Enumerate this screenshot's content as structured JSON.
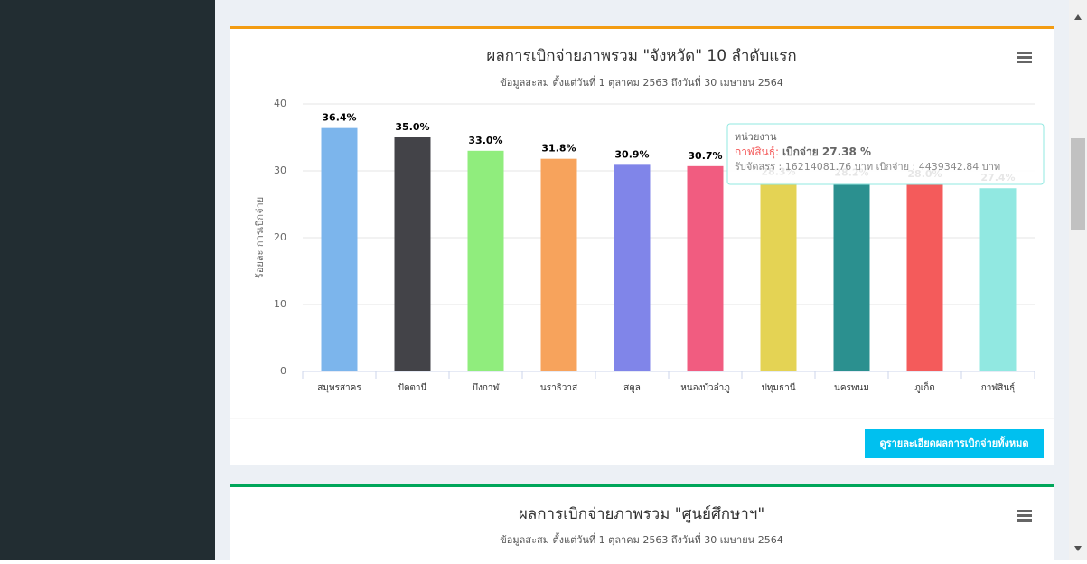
{
  "chart_data": {
    "type": "bar",
    "title": "ผลการเบิกจ่ายภาพรวม \"จังหวัด\" 10 ลำดับแรก",
    "subtitle": "ข้อมูลสะสม ตั้งแต่วันที่ 1 ตุลาคม 2563 ถึงวันที่ 30 เมษายน 2564",
    "ylabel": "ร้อยละ การเบิกจ่าย",
    "categories": [
      "สมุทรสาคร",
      "ปัตตานี",
      "บึงกาฬ",
      "นราธิวาส",
      "สตูล",
      "หนองบัวลำภู",
      "ปทุมธานี",
      "นครพนม",
      "ภูเก็ต",
      "กาฬสินธุ์"
    ],
    "values": [
      36.4,
      35.0,
      33.0,
      31.8,
      30.9,
      30.7,
      28.3,
      28.2,
      28.0,
      27.4
    ],
    "value_labels": [
      "36.4%",
      "35.0%",
      "33.0%",
      "31.8%",
      "30.9%",
      "30.7%",
      "28.3%",
      "28.2%",
      "28.0%",
      "27.4%"
    ],
    "colors": [
      "#7cb5ec",
      "#434348",
      "#90ed7d",
      "#f7a35c",
      "#8085e9",
      "#f15c80",
      "#e4d354",
      "#2b908f",
      "#f45b5b",
      "#91e8e1"
    ],
    "ylim": [
      0,
      40
    ],
    "yticks": [
      0,
      10,
      20,
      30,
      40
    ],
    "grid": true
  },
  "tooltip": {
    "header": "หน่วยงาน",
    "name": "กาฬสินธุ์:",
    "value": "เบิกจ่าย 27.38 %",
    "detail": "รับจัดสรร : 16214081.76 บาท เบิกจ่าย : 4439342.84 บาท"
  },
  "button": "ดูรายละเอียดผลการเบิกจ่ายทั้งหมด",
  "second_card": {
    "title": "ผลการเบิกจ่ายภาพรวม \"ศูนย์ศึกษาฯ\"",
    "subtitle": "ข้อมูลสะสม ตั้งแต่วันที่ 1 ตุลาคม 2563 ถึงวันที่ 30 เมษายน 2564"
  }
}
